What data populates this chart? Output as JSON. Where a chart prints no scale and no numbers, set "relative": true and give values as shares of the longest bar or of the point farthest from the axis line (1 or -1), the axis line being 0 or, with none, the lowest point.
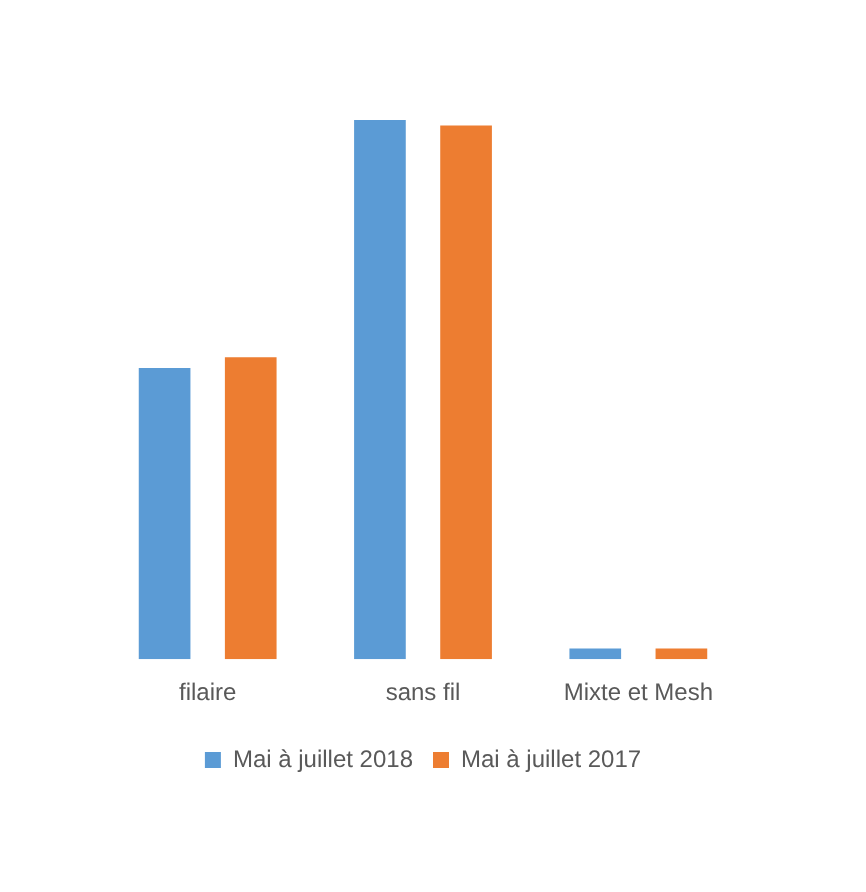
{
  "chart_data": {
    "type": "bar",
    "relative": true,
    "categories": [
      "filaire",
      "sans fil",
      "Mixte et Mesh"
    ],
    "series": [
      {
        "name": "Mai à juillet 2018",
        "color": "#5b9bd5",
        "values": [
          0.54,
          1,
          0.02
        ]
      },
      {
        "name": "Mai à juillet 2017",
        "color": "#ed7d31",
        "values": [
          0.56,
          0.99,
          0.02
        ]
      }
    ],
    "legend": "bottom",
    "grid": false
  }
}
